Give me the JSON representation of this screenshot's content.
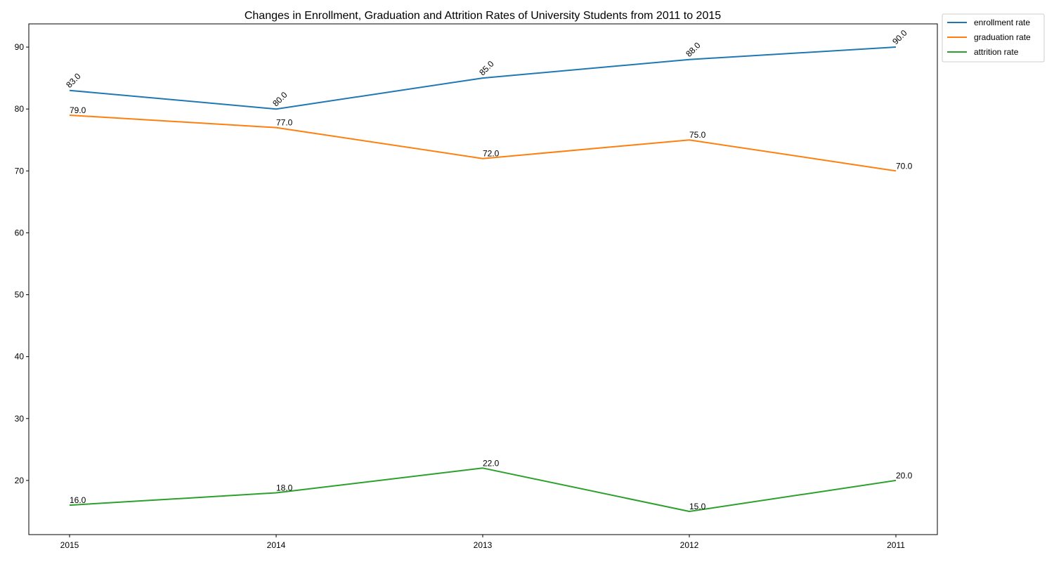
{
  "chart_data": {
    "type": "line",
    "title": "Changes in Enrollment, Graduation and Attrition Rates of University Students from 2011 to 2015",
    "xlabel": "",
    "ylabel": "",
    "categories": [
      "2015",
      "2014",
      "2013",
      "2012",
      "2011"
    ],
    "ylim": [
      11.25,
      93.75
    ],
    "yticks": [
      20,
      30,
      40,
      50,
      60,
      70,
      80,
      90
    ],
    "grid": false,
    "legend_position": "outside-top-right",
    "series": [
      {
        "name": "enrollment rate",
        "color": "#1f77b4",
        "values": [
          83,
          80,
          85,
          88,
          90
        ],
        "labels": [
          "83.0",
          "80.0",
          "85.0",
          "88.0",
          "90.0"
        ],
        "label_rotation": 45
      },
      {
        "name": "graduation rate",
        "color": "#ff7f0e",
        "values": [
          79,
          77,
          72,
          75,
          70
        ],
        "labels": [
          "79.0",
          "77.0",
          "72.0",
          "75.0",
          "70.0"
        ],
        "label_rotation": 0
      },
      {
        "name": "attrition rate",
        "color": "#2ca02c",
        "values": [
          16,
          18,
          22,
          15,
          20
        ],
        "labels": [
          "16.0",
          "18.0",
          "22.0",
          "15.0",
          "20.0"
        ],
        "label_rotation": 0
      }
    ]
  }
}
